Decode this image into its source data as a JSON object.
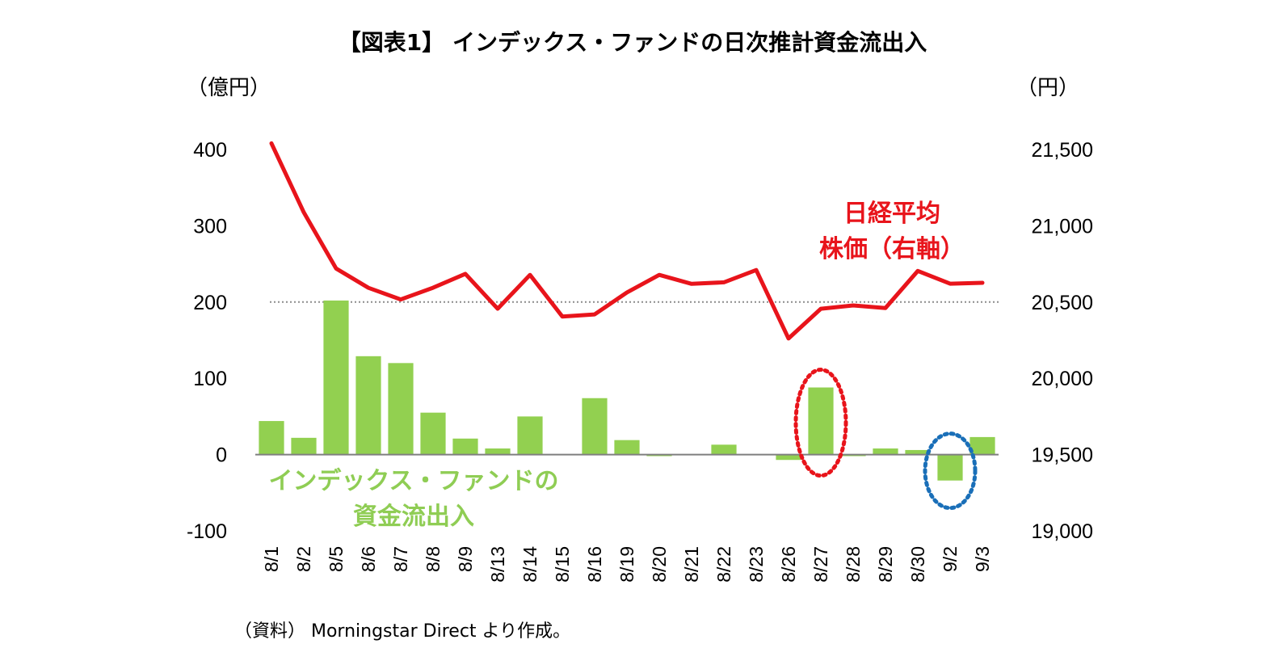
{
  "chart_data": {
    "type": "bar+line",
    "title": "【図表1】 インデックス・ファンドの日次推計資金流出入",
    "ylabel_left": "（億円）",
    "ylabel_right": "（円）",
    "ylim_left": [
      -100,
      400
    ],
    "yticks_left": [
      "400",
      "300",
      "200",
      "100",
      "0",
      "-100"
    ],
    "ylim_right": [
      19000,
      21500
    ],
    "yticks_right": [
      "21,500",
      "21,000",
      "20,500",
      "20,000",
      "19,500",
      "19,000"
    ],
    "categories": [
      "8/1",
      "8/2",
      "8/5",
      "8/6",
      "8/7",
      "8/8",
      "8/9",
      "8/13",
      "8/14",
      "8/15",
      "8/16",
      "8/19",
      "8/20",
      "8/21",
      "8/22",
      "8/23",
      "8/26",
      "8/27",
      "8/28",
      "8/29",
      "8/30",
      "9/2",
      "9/3"
    ],
    "series": [
      {
        "name": "インデックス・ファンドの資金流出入",
        "type": "bar",
        "axis": "left",
        "color": "#92d050",
        "values": [
          44,
          22,
          202,
          129,
          120,
          55,
          21,
          8,
          50,
          0,
          74,
          19,
          -2,
          0,
          13,
          0,
          -7,
          88,
          -2,
          8,
          6,
          -34,
          23
        ]
      },
      {
        "name": "日経平均株価（右軸）",
        "type": "line",
        "axis": "right",
        "color": "#e8141b",
        "values": [
          21540,
          21088,
          20720,
          20593,
          20517,
          20594,
          20685,
          20456,
          20678,
          20405,
          20419,
          20563,
          20678,
          20619,
          20629,
          20710,
          20261,
          20456,
          20478,
          20461,
          20704,
          20620,
          20626
        ]
      }
    ],
    "reference_line_left": 200,
    "annotations": {
      "line_label": [
        "日経平均",
        "株価（右軸）"
      ],
      "bar_label": [
        "インデックス・ファンドの",
        "資金流出入"
      ],
      "circled": [
        {
          "category": "8/27",
          "color": "#e8141b",
          "style": "dotted"
        },
        {
          "category": "9/2",
          "color": "#1a6fb8",
          "style": "dotted"
        }
      ]
    },
    "source": "（資料） Morningstar Direct より作成。",
    "grid": false
  }
}
